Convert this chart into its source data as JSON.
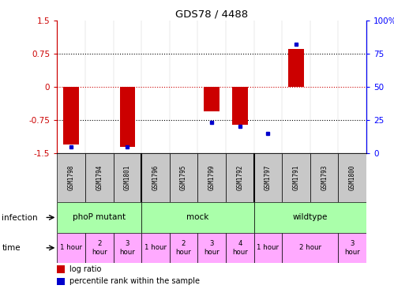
{
  "title": "GDS78 / 4488",
  "samples": [
    "GSM1798",
    "GSM1794",
    "GSM1801",
    "GSM1796",
    "GSM1795",
    "GSM1799",
    "GSM1792",
    "GSM1797",
    "GSM1791",
    "GSM1793",
    "GSM1800"
  ],
  "log_ratio": [
    -1.3,
    0.0,
    -1.35,
    0.0,
    0.0,
    -0.55,
    -0.85,
    0.0,
    0.85,
    0.0,
    0.0
  ],
  "percentile": [
    5,
    null,
    5,
    null,
    null,
    23,
    20,
    15,
    82,
    null,
    null
  ],
  "ylim": [
    -1.5,
    1.5
  ],
  "y2lim": [
    0,
    100
  ],
  "yticks_left": [
    -1.5,
    -0.75,
    0,
    0.75,
    1.5
  ],
  "ytick_labels_left": [
    "-1.5",
    "-0.75",
    "0",
    "0.75",
    "1.5"
  ],
  "yticks_right": [
    0,
    25,
    50,
    75,
    100
  ],
  "ytick_labels_right": [
    "0",
    "25",
    "50",
    "75",
    "100%"
  ],
  "infection_groups": [
    {
      "label": "phoP mutant",
      "start": 0,
      "end": 3,
      "color": "#aaffaa"
    },
    {
      "label": "mock",
      "start": 3,
      "end": 7,
      "color": "#aaffaa"
    },
    {
      "label": "wildtype",
      "start": 7,
      "end": 11,
      "color": "#aaffaa"
    }
  ],
  "time_cells": [
    {
      "label": "1 hour",
      "start": 0,
      "end": 1
    },
    {
      "label": "2\nhour",
      "start": 1,
      "end": 2
    },
    {
      "label": "3\nhour",
      "start": 2,
      "end": 3
    },
    {
      "label": "1 hour",
      "start": 3,
      "end": 4
    },
    {
      "label": "2\nhour",
      "start": 4,
      "end": 5
    },
    {
      "label": "3\nhour",
      "start": 5,
      "end": 6
    },
    {
      "label": "4\nhour",
      "start": 6,
      "end": 7
    },
    {
      "label": "1 hour",
      "start": 7,
      "end": 8
    },
    {
      "label": "2 hour",
      "start": 8,
      "end": 10
    },
    {
      "label": "3\nhour",
      "start": 10,
      "end": 11
    }
  ],
  "bar_color": "#cc0000",
  "dot_color": "#0000cc",
  "zero_line_color": "#cc0000",
  "bg_color": "#ffffff",
  "sample_box_color": "#c8c8c8",
  "time_color": "#ffaaff",
  "legend_items": [
    {
      "color": "#cc0000",
      "label": "log ratio"
    },
    {
      "color": "#0000cc",
      "label": "percentile rank within the sample"
    }
  ]
}
